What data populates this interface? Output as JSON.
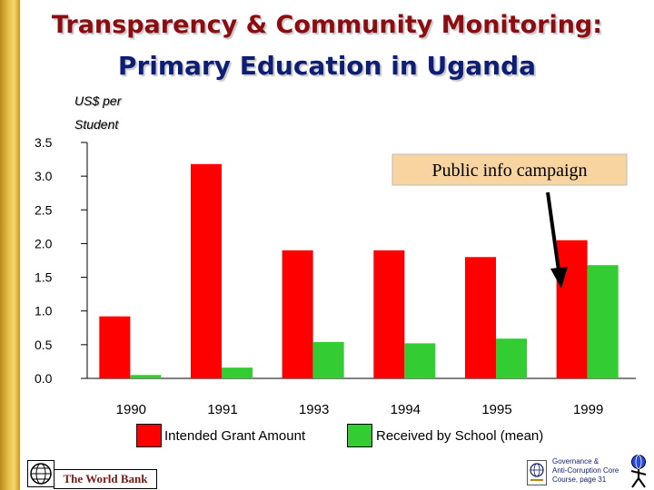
{
  "slide": {
    "title_line1": "Transparency & Community Monitoring:",
    "title_line2": "Primary Education in Uganda"
  },
  "chart_data": {
    "type": "bar",
    "ylabel_line1": "US$ per",
    "ylabel_line2": "Student",
    "ylim": [
      0,
      3.5
    ],
    "yticks": [
      "0.0",
      "0.5",
      "1.0",
      "1.5",
      "2.0",
      "2.5",
      "3.0",
      "3.5"
    ],
    "categories": [
      "1990",
      "1991",
      "1993",
      "1994",
      "1995",
      "1999"
    ],
    "series": [
      {
        "name": "Intended Grant Amount",
        "color": "#ff0000",
        "values": [
          0.92,
          3.18,
          1.9,
          1.9,
          1.8,
          2.05
        ]
      },
      {
        "name": "Received by School (mean)",
        "color": "#33cc33",
        "values": [
          0.05,
          0.16,
          0.54,
          0.52,
          0.59,
          1.68
        ]
      }
    ],
    "annotation": {
      "text": "Public info campaign",
      "background": "#f7d4a0"
    },
    "grid": false,
    "legend_position": "bottom"
  },
  "footer": {
    "org_name": "The World Bank",
    "course_line1": "Governance &",
    "course_line2": "Anti-Corruption Core",
    "course_line3": "Course, page 31"
  }
}
